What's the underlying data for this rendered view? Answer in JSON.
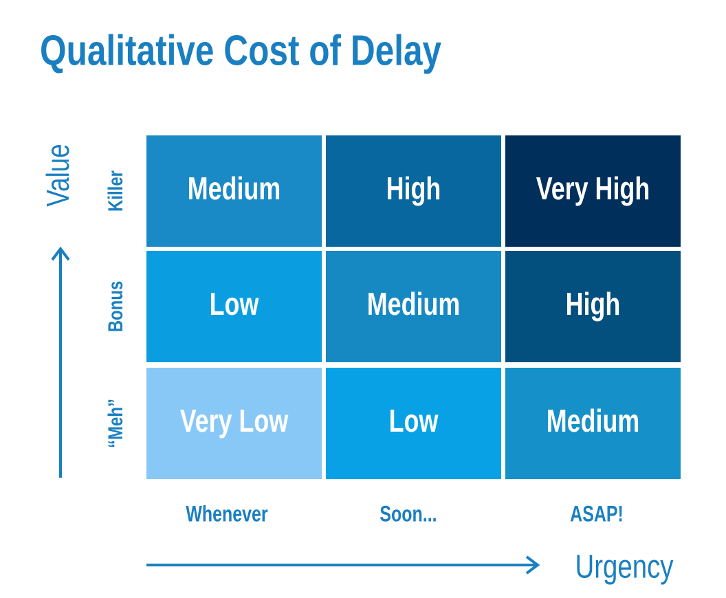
{
  "title": "Qualitative Cost of Delay",
  "y_axis": {
    "label": "Value"
  },
  "x_axis": {
    "label": "Urgency"
  },
  "columns": [
    "Whenever",
    "Soon...",
    "ASAP!"
  ],
  "rows": [
    {
      "label": "Killer",
      "cells": [
        "Medium",
        "High",
        "Very High"
      ]
    },
    {
      "label": "Bonus",
      "cells": [
        "Low",
        "Medium",
        "High"
      ]
    },
    {
      "label": "“Meh”",
      "cells": [
        "Very Low",
        "Low",
        "Medium"
      ]
    }
  ]
}
